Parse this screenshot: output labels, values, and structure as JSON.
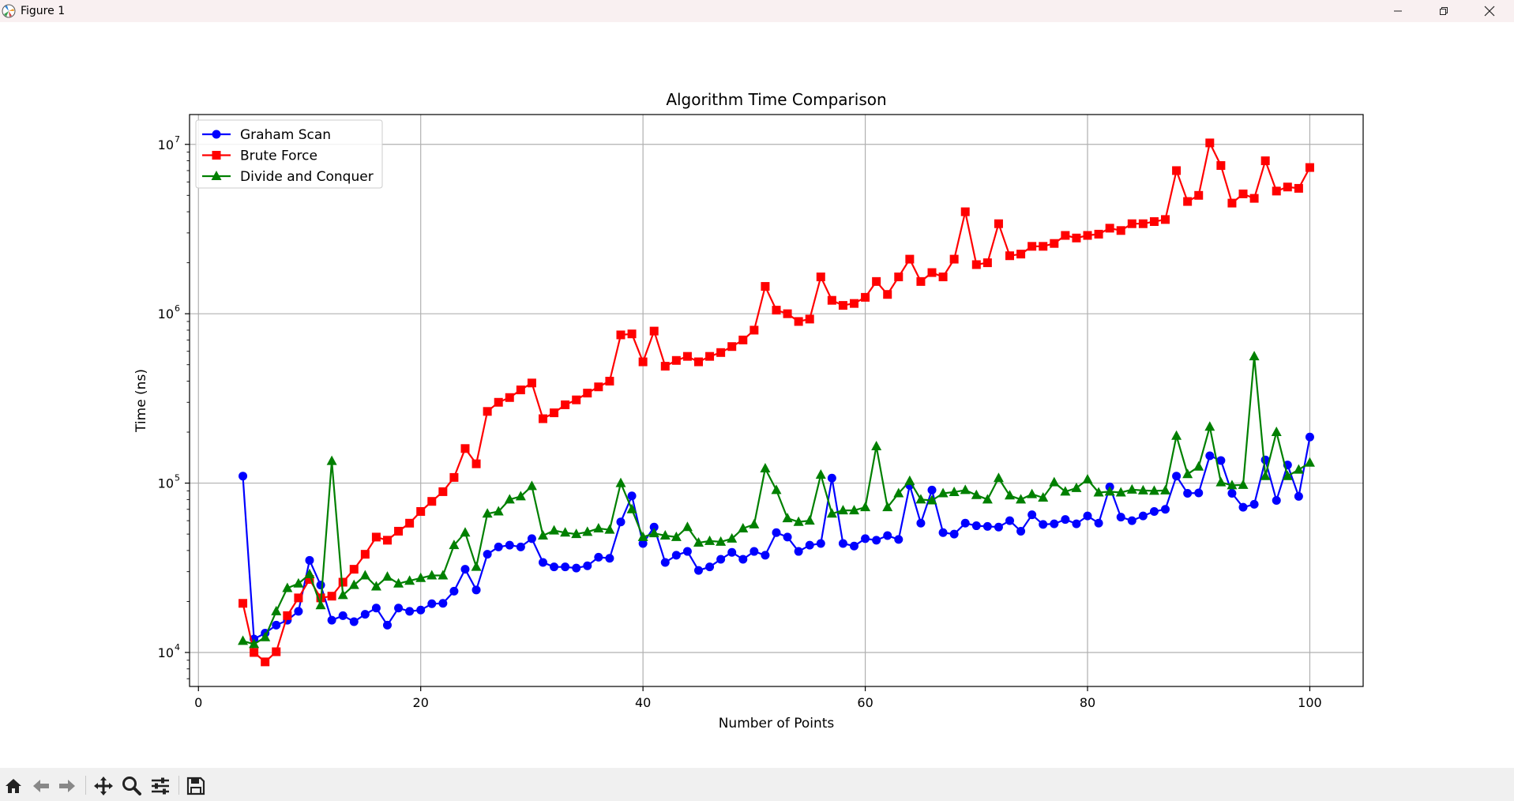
{
  "window": {
    "title": "Figure 1"
  },
  "toolbar": {
    "buttons": [
      "home-icon",
      "back-icon",
      "forward-icon",
      "pan-icon",
      "zoom-icon",
      "configure-icon",
      "save-icon"
    ]
  },
  "colors": {
    "graham": "#0000ff",
    "brute": "#ff0000",
    "divide": "#008000"
  },
  "chart_data": {
    "type": "line",
    "title": "Algorithm Time Comparison",
    "xlabel": "Number of Points",
    "ylabel": "Time (ns)",
    "xlim": [
      -0.8,
      104.8
    ],
    "ylim": [
      6300,
      15000000
    ],
    "yscale": "log",
    "grid": true,
    "legend": "upper left",
    "xticks": [
      0,
      20,
      40,
      60,
      80,
      100
    ],
    "xtick_labels": [
      "0",
      "20",
      "40",
      "60",
      "80",
      "100"
    ],
    "yticks": [
      10000,
      100000,
      1000000,
      10000000
    ],
    "ytick_labels": [
      "10",
      "10",
      "10",
      "10"
    ],
    "ytick_exponents": [
      "4",
      "5",
      "6",
      "7"
    ],
    "x": [
      4,
      5,
      6,
      7,
      8,
      9,
      10,
      11,
      12,
      13,
      14,
      15,
      16,
      17,
      18,
      19,
      20,
      21,
      22,
      23,
      24,
      25,
      26,
      27,
      28,
      29,
      30,
      31,
      32,
      33,
      34,
      35,
      36,
      37,
      38,
      39,
      40,
      41,
      42,
      43,
      44,
      45,
      46,
      47,
      48,
      49,
      50,
      51,
      52,
      53,
      54,
      55,
      56,
      57,
      58,
      59,
      60,
      61,
      62,
      63,
      64,
      65,
      66,
      67,
      68,
      69,
      70,
      71,
      72,
      73,
      74,
      75,
      76,
      77,
      78,
      79,
      80,
      81,
      82,
      83,
      84,
      85,
      86,
      87,
      88,
      89,
      90,
      91,
      92,
      93,
      94,
      95,
      96,
      97,
      98,
      99,
      100
    ],
    "series": [
      {
        "name": "Graham Scan",
        "marker": "circle",
        "color": "#0000ff",
        "values": [
          110000,
          12000,
          13000,
          14500,
          15500,
          17500,
          35000,
          25000,
          15500,
          16500,
          15200,
          16800,
          18300,
          14500,
          18300,
          17500,
          17800,
          19400,
          19500,
          23000,
          31000,
          23400,
          38000,
          42000,
          43000,
          42000,
          47000,
          34000,
          32000,
          32000,
          31500,
          32500,
          36500,
          36000,
          59000,
          84000,
          44000,
          55000,
          34000,
          37500,
          39500,
          30500,
          32000,
          35500,
          39000,
          35500,
          39500,
          37500,
          51000,
          48000,
          39500,
          43000,
          44000,
          107000,
          44000,
          42500,
          47000,
          46000,
          49000,
          46500,
          97000,
          58000,
          91000,
          51000,
          50000,
          58000,
          56000,
          55500,
          55000,
          60000,
          52000,
          65000,
          57000,
          57500,
          61000,
          57500,
          64000,
          58000,
          95000,
          63000,
          60000,
          64000,
          68000,
          70000,
          110000,
          87000,
          87500,
          145000,
          136000,
          87000,
          72000,
          75000,
          137000,
          79000,
          128000,
          83500,
          187000
        ]
      },
      {
        "name": "Brute Force",
        "marker": "square",
        "color": "#ff0000",
        "values": [
          19500,
          10000,
          8800,
          10100,
          16500,
          21000,
          27000,
          21000,
          21500,
          26000,
          31000,
          38000,
          48000,
          46000,
          52000,
          58000,
          68000,
          78000,
          89000,
          108000,
          160000,
          130000,
          265000,
          300000,
          320000,
          355000,
          390000,
          240000,
          260000,
          290000,
          310000,
          340000,
          370000,
          400000,
          750000,
          760000,
          520000,
          790000,
          490000,
          530000,
          560000,
          520000,
          560000,
          590000,
          640000,
          700000,
          800000,
          1450000,
          1050000,
          1000000,
          900000,
          930000,
          1650000,
          1200000,
          1120000,
          1150000,
          1250000,
          1550000,
          1300000,
          1650000,
          2100000,
          1550000,
          1750000,
          1650000,
          2100000,
          4000000,
          1950000,
          2000000,
          3400000,
          2200000,
          2250000,
          2500000,
          2500000,
          2600000,
          2900000,
          2800000,
          2900000,
          2950000,
          3200000,
          3100000,
          3400000,
          3400000,
          3500000,
          3600000,
          7000000,
          4600000,
          5000000,
          10200000,
          7500000,
          4500000,
          5100000,
          4800000,
          8000000,
          5300000,
          5600000,
          5500000,
          7300000
        ]
      },
      {
        "name": "Divide and Conquer",
        "marker": "triangle",
        "color": "#008000",
        "values": [
          11700,
          11200,
          12300,
          17500,
          24000,
          25500,
          29000,
          19000,
          135000,
          21800,
          25000,
          28500,
          24500,
          28000,
          25500,
          26500,
          27500,
          28500,
          28500,
          43000,
          51000,
          32000,
          66000,
          68000,
          80000,
          83500,
          96000,
          49000,
          52500,
          51000,
          50000,
          51500,
          54000,
          53000,
          100000,
          70000,
          48000,
          50500,
          49000,
          48000,
          55000,
          44500,
          45500,
          45000,
          47000,
          54000,
          57000,
          122000,
          91000,
          62000,
          59000,
          60000,
          112000,
          66000,
          69000,
          69000,
          72000,
          165000,
          72000,
          87000,
          103000,
          80000,
          79000,
          87000,
          88500,
          91000,
          85000,
          80000,
          107000,
          84500,
          80000,
          86000,
          82000,
          101000,
          89000,
          93500,
          105000,
          88000,
          89000,
          88000,
          91500,
          90500,
          90000,
          90500,
          190000,
          113000,
          125000,
          215000,
          101000,
          97000,
          97500,
          560000,
          110000,
          200000,
          110000,
          120000,
          132000
        ]
      }
    ]
  }
}
